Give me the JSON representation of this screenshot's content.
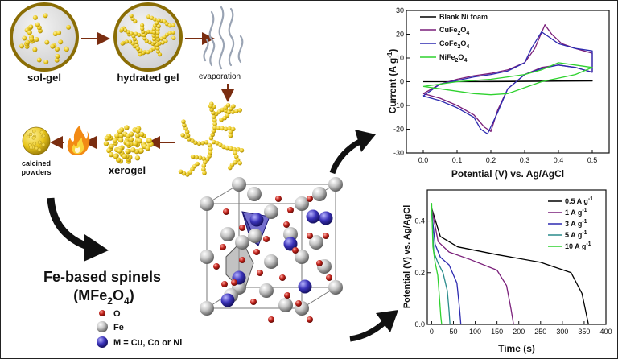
{
  "flow": {
    "sol_gel": "sol-gel",
    "hydrated_gel": "hydrated gel",
    "evaporation": "evaporation",
    "xerogel": "xerogel",
    "calcined_line1": "calcined",
    "calcined_line2": "powders"
  },
  "spinel": {
    "title_line1": "Fe-based spinels",
    "formula_m": "(MFe",
    "formula_sub2": "2",
    "formula_o": "O",
    "formula_sub4": "4",
    "formula_close": ")"
  },
  "legend": {
    "o": "O",
    "fe": "Fe",
    "m": "M = Cu, Co or Ni"
  },
  "colors": {
    "gel_yellow": "#e8c51a",
    "gel_outline": "#a38614",
    "arrow_brown": "#7a2d10",
    "oxygen": "#c0211a",
    "iron": "#b4b4b4",
    "metal": "#3a32b8",
    "blank_ni": "#000000",
    "cufe": "#7a1f7a",
    "cofe": "#2d2ab0",
    "nife": "#2fd22f"
  },
  "chart_data": [
    {
      "type": "line",
      "xlabel": "Potential (V) vs. Ag/AgCl",
      "ylabel_main": "Current (A g",
      "ylabel_sup": "-1",
      "ylabel_end": ")",
      "xlim": [
        -0.05,
        0.55
      ],
      "ylim": [
        -30,
        30
      ],
      "xticks": [
        "0.0",
        "0.1",
        "0.2",
        "0.3",
        "0.4",
        "0.5"
      ],
      "yticks": [
        "30",
        "20",
        "10",
        "0",
        "-10",
        "-20",
        "-30"
      ],
      "legend_position": "top-left",
      "series": [
        {
          "name": "Blank Ni foam",
          "color": "#000000",
          "x": [
            0,
            0.1,
            0.2,
            0.3,
            0.4,
            0.5,
            0.4,
            0.3,
            0.2,
            0.1,
            0
          ],
          "y": [
            0,
            0,
            0,
            0.1,
            0.2,
            0.3,
            0.3,
            0.2,
            0.1,
            0,
            0
          ]
        },
        {
          "name_main": "CuFe",
          "name_sub": "2",
          "name_o": "O",
          "name_sub2": "4",
          "color": "#7a1f7a",
          "x": [
            0,
            0.05,
            0.1,
            0.15,
            0.2,
            0.25,
            0.3,
            0.33,
            0.36,
            0.38,
            0.41,
            0.45,
            0.5,
            0.5,
            0.45,
            0.4,
            0.35,
            0.3,
            0.25,
            0.22,
            0.2,
            0.18,
            0.15,
            0.1,
            0.05,
            0
          ],
          "y": [
            -5,
            -1,
            1,
            2.5,
            3.5,
            5,
            8,
            14,
            24,
            20,
            16,
            14,
            12,
            4,
            6,
            7,
            6,
            3,
            -3,
            -12,
            -21,
            -19,
            -14,
            -10,
            -7,
            -5
          ]
        },
        {
          "name_main": "CoFe",
          "name_sub": "2",
          "name_o": "O",
          "name_sub2": "4",
          "color": "#2d2ab0",
          "x": [
            0,
            0.05,
            0.1,
            0.15,
            0.2,
            0.25,
            0.3,
            0.32,
            0.35,
            0.37,
            0.4,
            0.45,
            0.5,
            0.5,
            0.45,
            0.4,
            0.35,
            0.3,
            0.25,
            0.22,
            0.19,
            0.17,
            0.15,
            0.1,
            0.05,
            0
          ],
          "y": [
            -6,
            -1,
            0.5,
            2,
            3,
            4.5,
            8,
            14,
            21,
            19,
            16,
            14,
            13,
            4,
            6,
            7,
            5.5,
            3,
            -3,
            -13,
            -22,
            -20,
            -15,
            -11,
            -8,
            -6
          ]
        },
        {
          "name_main": "NiFe",
          "name_sub": "2",
          "name_o": "O",
          "name_sub2": "4",
          "color": "#2fd22f",
          "x": [
            0,
            0.05,
            0.1,
            0.15,
            0.2,
            0.25,
            0.3,
            0.35,
            0.4,
            0.45,
            0.5,
            0.45,
            0.4,
            0.35,
            0.3,
            0.25,
            0.2,
            0.15,
            0.1,
            0.05,
            0
          ],
          "y": [
            -2,
            -1,
            0,
            0.5,
            1,
            2,
            3,
            5,
            8,
            7,
            6,
            3,
            1.5,
            0,
            -2.5,
            -5,
            -5.5,
            -5,
            -4,
            -3,
            -2
          ]
        }
      ]
    },
    {
      "type": "line",
      "xlabel": "Time (s)",
      "ylabel": "Potential (V) vs. Ag/AgCl",
      "xlim": [
        -10,
        400
      ],
      "ylim": [
        0,
        0.52
      ],
      "xticks": [
        "0",
        "50",
        "100",
        "150",
        "200",
        "250",
        "300",
        "350",
        "400"
      ],
      "yticks": [
        "0.4",
        "0.2",
        "0.0"
      ],
      "legend_position": "top-right",
      "series": [
        {
          "name_main": "0.5 A g",
          "name_sup": "-1",
          "color": "#000000",
          "x": [
            0,
            20,
            60,
            150,
            250,
            320,
            345,
            355,
            360
          ],
          "y": [
            0.45,
            0.34,
            0.3,
            0.27,
            0.24,
            0.2,
            0.12,
            0.04,
            0
          ]
        },
        {
          "name_main": "1 A g",
          "name_sup": "-1",
          "color": "#7a1f7a",
          "x": [
            0,
            15,
            40,
            90,
            150,
            172,
            182,
            188
          ],
          "y": [
            0.45,
            0.32,
            0.28,
            0.25,
            0.21,
            0.15,
            0.06,
            0
          ]
        },
        {
          "name_main": "3 A g",
          "name_sup": "-1",
          "color": "#2d2ab0",
          "x": [
            0,
            8,
            20,
            40,
            58,
            64,
            67
          ],
          "y": [
            0.44,
            0.31,
            0.26,
            0.23,
            0.16,
            0.06,
            0
          ]
        },
        {
          "name_main": "5 A g",
          "name_sup": "-1",
          "color": "#2a8c8c",
          "x": [
            0,
            5,
            14,
            26,
            36,
            40,
            42
          ],
          "y": [
            0.44,
            0.28,
            0.24,
            0.2,
            0.13,
            0.05,
            0
          ]
        },
        {
          "name_main": "10 A g",
          "name_sup": "-1",
          "color": "#2fd22f",
          "x": [
            0,
            3,
            8,
            14,
            18,
            21,
            23
          ],
          "y": [
            0.47,
            0.3,
            0.24,
            0.19,
            0.1,
            0.03,
            0
          ]
        }
      ]
    }
  ]
}
